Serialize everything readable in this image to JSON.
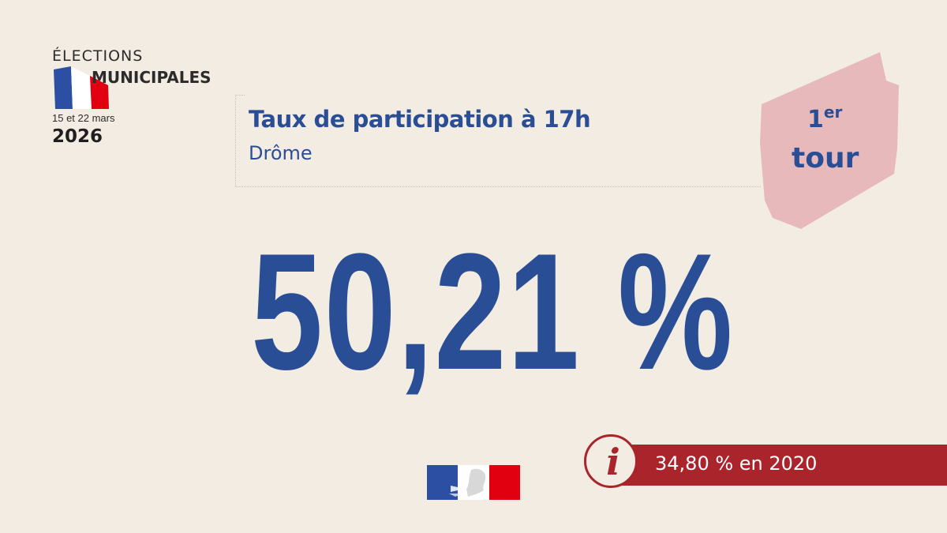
{
  "logo": {
    "line1": "ÉLECTIONS",
    "line2": "MUNICIPALES",
    "dates": "15 et 22 mars",
    "year": "2026"
  },
  "header": {
    "title": "Taux de participation à 17h",
    "subtitle": "Drôme"
  },
  "round_badge": {
    "number": "1",
    "suffix": "er",
    "word": "tour"
  },
  "main_value": "50,21 %",
  "comparison": {
    "text": "34,80 % en 2020",
    "icon": "info-icon"
  },
  "colors": {
    "background": "#f3ece3",
    "primary_blue": "#2a4e96",
    "accent_red": "#a9242b",
    "badge_pink": "#e8b9bb",
    "flag_blue": "#2c4fa3",
    "flag_red": "#e1000f"
  }
}
